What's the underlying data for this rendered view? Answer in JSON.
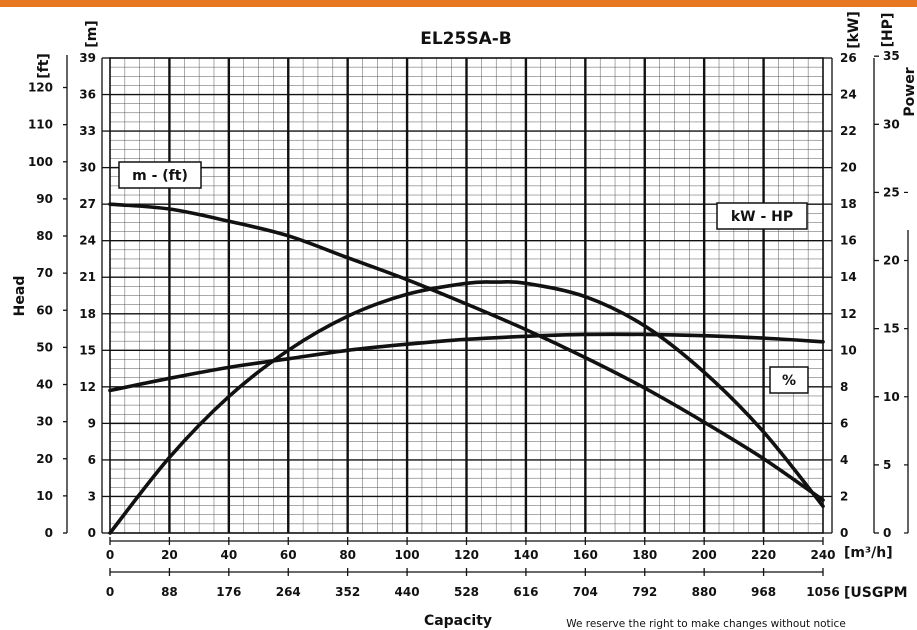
{
  "chart_data": {
    "type": "line",
    "title": "EL25SA-B",
    "xlabel": "Capacity",
    "ylabel": "Head",
    "right_label": "Power",
    "footer_note": "We reserve the right to make changes without notice",
    "accent_color": "#e87722",
    "units": {
      "x_primary": "[m³/h]",
      "x_secondary": "[USGPM",
      "y_m": "[m]",
      "y_ft": "[ft]",
      "y_kw": "[kW]",
      "y_hp": "[HP]"
    },
    "x_ticks": [
      "0",
      "20",
      "40",
      "60",
      "80",
      "100",
      "120",
      "140",
      "160",
      "180",
      "200",
      "220",
      "240"
    ],
    "x2_ticks": [
      "0",
      "88",
      "176",
      "264",
      "352",
      "440",
      "528",
      "616",
      "704",
      "792",
      "880",
      "968",
      "1056"
    ],
    "y_m_ticks": [
      "0",
      "3",
      "6",
      "9",
      "12",
      "15",
      "18",
      "21",
      "24",
      "27",
      "30",
      "33",
      "36",
      "39"
    ],
    "y_ft_ticks": [
      "0",
      "10",
      "20",
      "30",
      "40",
      "50",
      "60",
      "70",
      "80",
      "90",
      "100",
      "110",
      "120"
    ],
    "y_kw_ticks": [
      "0",
      "2",
      "4",
      "6",
      "8",
      "10",
      "12",
      "14",
      "16",
      "18",
      "20",
      "22",
      "24",
      "26"
    ],
    "y_hp_ticks": [
      "0",
      "5",
      "10",
      "15",
      "20",
      "25",
      "30",
      "35"
    ],
    "xlim": [
      0,
      240
    ],
    "ylim": [
      0,
      39
    ],
    "grid": true,
    "series": [
      {
        "name": "m - (ft)",
        "x": [
          0,
          20,
          40,
          60,
          80,
          100,
          120,
          140,
          160,
          180,
          200,
          220,
          240
        ],
        "y": [
          27,
          26.6,
          25.6,
          24.4,
          22.6,
          20.8,
          18.8,
          16.7,
          14.4,
          11.9,
          9.1,
          6.1,
          2.7
        ]
      },
      {
        "name": "kW - HP",
        "x": [
          0,
          20,
          40,
          60,
          80,
          100,
          120,
          140,
          160,
          180,
          200,
          220,
          240
        ],
        "y": [
          11.7,
          12.7,
          13.6,
          14.3,
          15.0,
          15.5,
          15.9,
          16.15,
          16.3,
          16.3,
          16.2,
          16.0,
          15.7
        ]
      },
      {
        "name": "%",
        "x": [
          0,
          20,
          40,
          60,
          80,
          100,
          120,
          130,
          140,
          160,
          180,
          200,
          220,
          240
        ],
        "y": [
          0,
          6.2,
          11.2,
          15.0,
          17.8,
          19.6,
          20.5,
          20.6,
          20.5,
          19.4,
          17.0,
          13.2,
          8.3,
          2.2
        ]
      }
    ]
  }
}
